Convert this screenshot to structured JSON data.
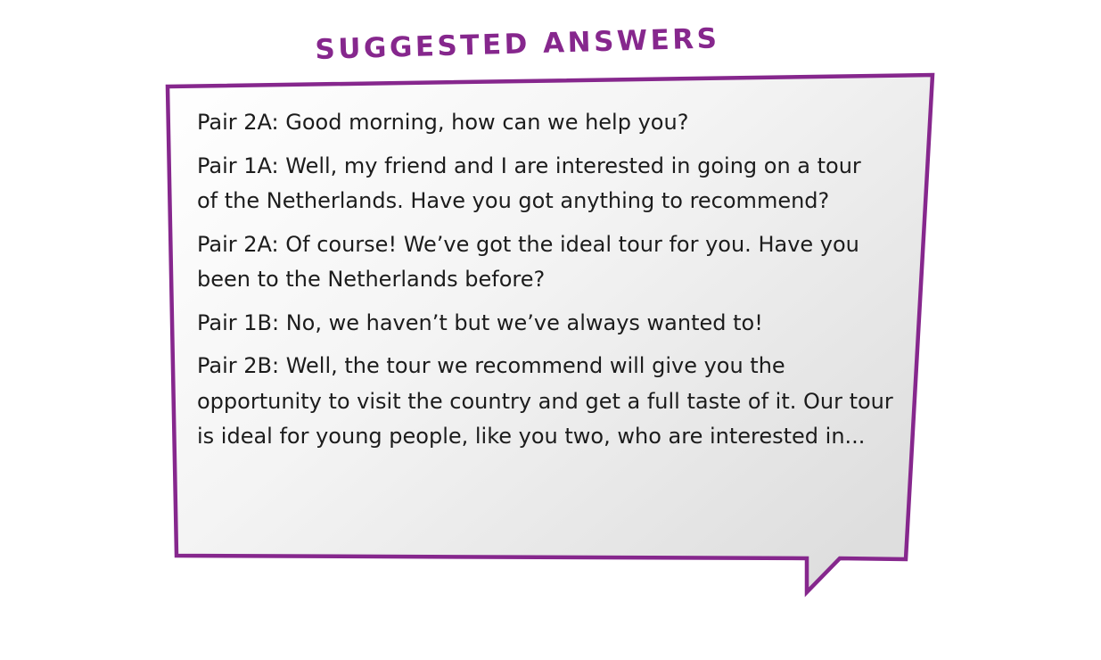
{
  "title": "SUGGESTED ANSWERS",
  "colors": {
    "accent": "#86278d",
    "bubble_fill_light": "#ffffff",
    "bubble_fill_dark": "#dedede"
  },
  "dialogue": [
    {
      "speaker": "Pair 2A",
      "text": "Pair 2A: Good morning, how can we help you?"
    },
    {
      "speaker": "Pair 1A",
      "text": "Pair 1A: Well, my friend and I are interested in going on a tour of the Netherlands. Have you got anything to recommend?"
    },
    {
      "speaker": "Pair 2A",
      "text": "Pair 2A: Of course! We’ve got the ideal tour for you. Have you been to the Netherlands before?"
    },
    {
      "speaker": "Pair 1B",
      "text": "Pair 1B: No, we haven’t but we’ve always wanted to!"
    },
    {
      "speaker": "Pair 2B",
      "text": "Pair 2B: Well, the tour we recommend will give you the opportunity to visit the country and get a full taste of it. Our tour is ideal for young people, like you two, who are interested in..."
    }
  ]
}
